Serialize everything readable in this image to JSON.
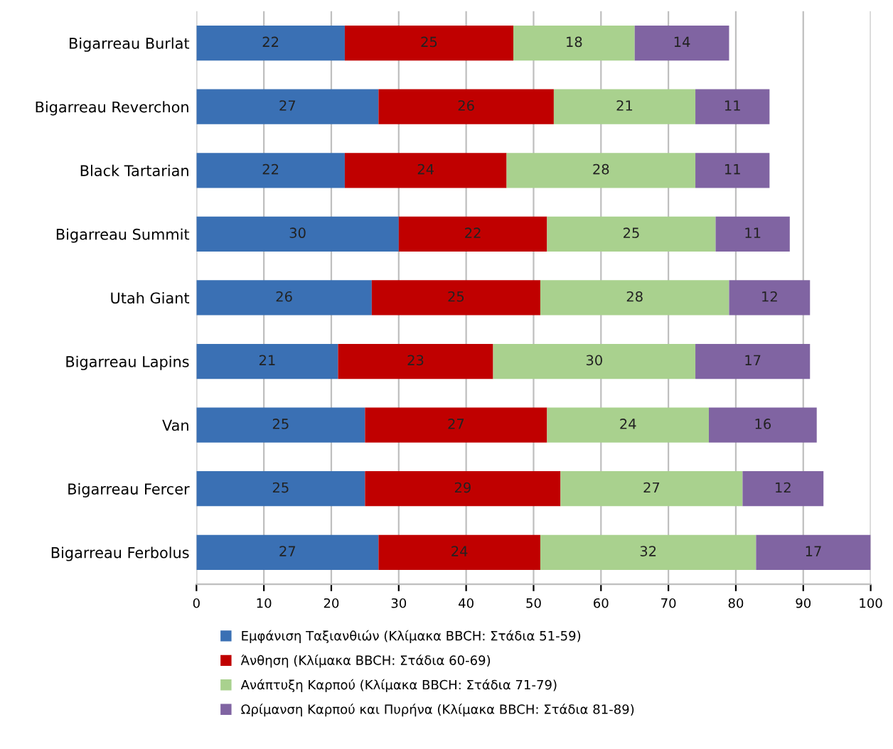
{
  "chart_data": {
    "type": "bar",
    "orientation": "horizontal",
    "stacked": true,
    "data_labels": true,
    "grid": "x",
    "legend": "bottom",
    "categories": [
      "Bigarreau Burlat",
      "Bigarreau Reverchon",
      "Black Tartarian",
      "Bigarreau Summit",
      "Utah Giant",
      "Bigarreau Lapins",
      "Van",
      "Bigarreau Fercer",
      "Bigarreau Ferbolus"
    ],
    "xlim": [
      0,
      100
    ],
    "xticks": [
      0,
      10,
      20,
      30,
      40,
      50,
      60,
      70,
      80,
      90,
      100
    ],
    "series": [
      {
        "name": "Εμφάνιση Ταξιανθιών (Κλίμακα BBCH: Στάδια 51-59)",
        "color": "#3a70b4",
        "values": [
          22,
          27,
          22,
          30,
          26,
          21,
          25,
          25,
          27
        ]
      },
      {
        "name": "Άνθηση (Κλίμακα BBCH: Στάδια 60-69)",
        "color": "#c00000",
        "values": [
          25,
          26,
          24,
          22,
          25,
          23,
          27,
          29,
          24
        ]
      },
      {
        "name": "Ανάπτυξη Καρπού (Κλίμακα BBCH: Στάδια 71-79)",
        "color": "#a9d18e",
        "values": [
          18,
          21,
          28,
          25,
          28,
          30,
          24,
          27,
          32
        ]
      },
      {
        "name": "Ωρίμανση Καρπού και Πυρήνα (Κλίμακα BBCH: Στάδια 81-89)",
        "color": "#8064a2",
        "values": [
          14,
          11,
          11,
          11,
          12,
          17,
          16,
          12,
          17
        ]
      }
    ]
  }
}
